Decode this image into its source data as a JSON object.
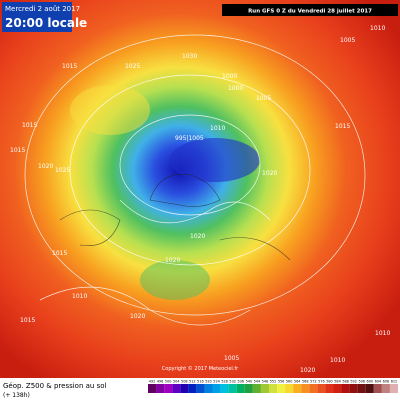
{
  "header": {
    "date": "Mercredi 2 août 2017",
    "time": "20:00 locale",
    "run": "Run GFS 0 Z du Vendredi 28 juillet 2017"
  },
  "footer": {
    "title": "Géop. Z500 & pression au sol",
    "lead": "(+ 138h)",
    "copyright": "Copyright © 2017 Meteociel.fr"
  },
  "scale": {
    "labels": [
      492,
      496,
      500,
      504,
      508,
      512,
      516,
      520,
      524,
      528,
      532,
      536,
      540,
      544,
      548,
      552,
      556,
      560,
      564,
      568,
      572,
      576,
      580,
      584,
      588,
      592,
      596,
      600,
      604,
      608,
      612
    ]
  },
  "isobars": [
    "1015",
    "1015",
    "1020",
    "1025",
    "1025",
    "1030",
    "1000",
    "1000",
    "1005",
    "995|1005",
    "1010",
    "1020",
    "1015",
    "1010",
    "1020",
    "1020",
    "1015",
    "1005",
    "1010",
    "1015",
    "1020",
    "1020",
    "1010",
    "1005",
    "1015",
    "1010"
  ]
}
